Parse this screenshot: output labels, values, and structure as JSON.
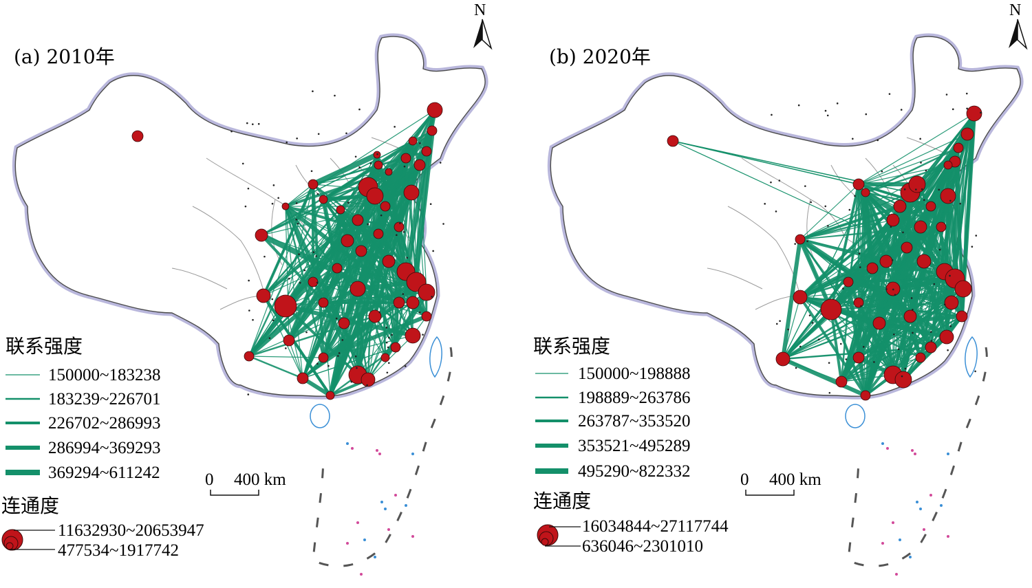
{
  "panels": [
    {
      "id": "a",
      "title": "(a) 2010年",
      "legend_strength_title": "联系强度",
      "strength_classes": [
        "150000~183238",
        "183239~226701",
        "226702~286993",
        "286994~369293",
        "369294~611242"
      ],
      "legend_connectivity_title": "连通度",
      "connectivity_max": "11632930~20653947",
      "connectivity_min": "477534~1917742",
      "scale_zero": "0",
      "scale_label": "400 km",
      "north": "N"
    },
    {
      "id": "b",
      "title": "(b) 2020年",
      "legend_strength_title": "联系强度",
      "strength_classes": [
        "150000~198888",
        "198889~263786",
        "263787~353520",
        "353521~495289",
        "495290~822332"
      ],
      "legend_connectivity_title": "连通度",
      "connectivity_max": "16034844~27117744",
      "connectivity_min": "636046~2301010",
      "scale_zero": "0",
      "scale_label": "400 km",
      "north": "N"
    }
  ],
  "colors": {
    "link": "#14906a",
    "node": "#c0141a",
    "node_stroke": "#3a0a0a",
    "boundary_halo": "#b9b7dc",
    "province_line": "#9a9a9a",
    "coast_blue": "#3a8fd6",
    "island_pink": "#d24a9a"
  }
}
